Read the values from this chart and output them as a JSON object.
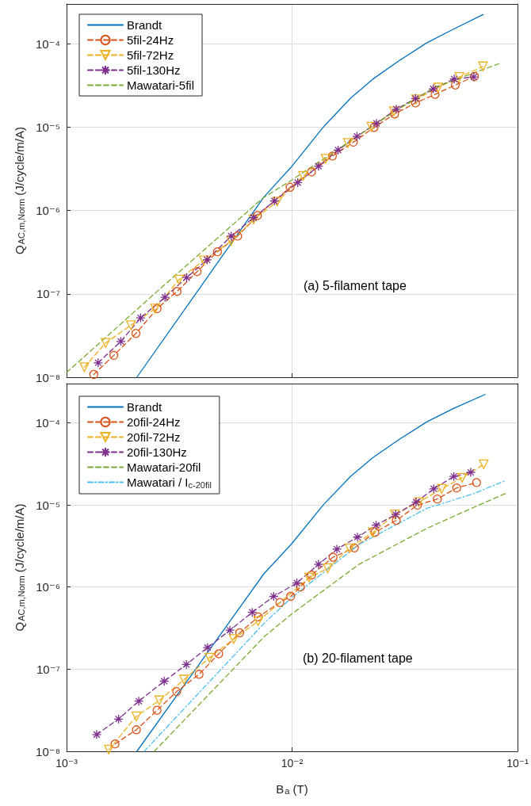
{
  "chart_data": [
    {
      "type": "line",
      "ylabel": "Q$_{AC,m,Norm}$ (J/cycle/m/A)",
      "annotations": [
        "(a) 5-filament tape"
      ],
      "log": "xy",
      "grid": true,
      "legend": "top left",
      "tick_labels": "y",
      "xlim": [
        0.001,
        0.1
      ],
      "xticks": [
        {
          "value": 0.001,
          "label": null
        },
        {
          "value": 0.01,
          "label": null
        },
        {
          "value": 0.1,
          "label": null
        }
      ],
      "ylim": [
        1e-08,
        0.0003
      ],
      "yticks": [
        {
          "value": 1e-08,
          "label": "10⁻⁸"
        },
        {
          "value": 1e-07,
          "label": "10⁻⁷"
        },
        {
          "value": 1e-06,
          "label": "10⁻⁶"
        },
        {
          "value": 1e-05,
          "label": "10⁻⁵"
        },
        {
          "value": 0.0001,
          "label": "10⁻⁴"
        }
      ],
      "series": [
        {
          "name": "Brandt",
          "color": "#0072bd",
          "marker": "none",
          "line_style": "solid",
          "x": [
            0.00205,
            0.0075,
            0.0099,
            0.0138,
            0.0182,
            0.0228,
            0.0302,
            0.0397,
            0.0516,
            0.0703
          ],
          "values": [
            1e-08,
            1.45e-06,
            3.3e-06,
            1.01e-05,
            2.23e-05,
            3.76e-05,
            6.4e-05,
            0.000103,
            0.000148,
            0.000224
          ]
        },
        {
          "name": "5fil-24Hz",
          "color": "#d95319",
          "marker": "circle",
          "line_style": "dashed",
          "x": [
            0.00132,
            0.00162,
            0.00203,
            0.00252,
            0.00309,
            0.00379,
            0.00467,
            0.00574,
            0.00703,
            0.0098,
            0.0122,
            0.0151,
            0.0187,
            0.0231,
            0.0285,
            0.0353,
            0.0431,
            0.053,
            0.0644
          ],
          "values": [
            1.08e-08,
            1.83e-08,
            3.35e-08,
            6.65e-08,
            1.07e-07,
            1.85e-07,
            3.2e-07,
            4.93e-07,
            8.7e-07,
            1.9e-06,
            2.9e-06,
            4.5e-06,
            6.6e-06,
            9.9e-06,
            1.44e-05,
            1.95e-05,
            2.47e-05,
            3.2e-05,
            4.05e-05
          ]
        },
        {
          "name": "5fil-72Hz",
          "color": "#edb120",
          "marker": "triangle",
          "line_style": "dashed",
          "x": [
            0.0012,
            0.00149,
            0.00193,
            0.00247,
            0.00315,
            0.00406,
            0.00537,
            0.00675,
            0.0086,
            0.0112,
            0.0141,
            0.0177,
            0.0225,
            0.0283,
            0.0355,
            0.0445,
            0.0552,
            0.0703
          ],
          "values": [
            1.32e-08,
            2.58e-08,
            4.2e-08,
            6.65e-08,
            1.48e-07,
            2.52e-07,
            4.3e-07,
            7.8e-07,
            1.28e-06,
            2.6e-06,
            4.17e-06,
            6.45e-06,
            1.01e-05,
            1.55e-05,
            2.15e-05,
            2.98e-05,
            3.99e-05,
            5.35e-05
          ]
        },
        {
          "name": "5fil-130Hz",
          "color": "#7e2f8e",
          "marker": "cross",
          "line_style": "dashed",
          "x": [
            0.00138,
            0.00174,
            0.00213,
            0.00273,
            0.00341,
            0.0042,
            0.00537,
            0.00675,
            0.00835,
            0.0106,
            0.0131,
            0.016,
            0.0194,
            0.0237,
            0.029,
            0.0353,
            0.0423,
            0.0524,
            0.064
          ],
          "values": [
            1.49e-08,
            2.69e-08,
            5.15e-08,
            9.1e-08,
            1.57e-07,
            2.56e-07,
            4.93e-07,
            8.2e-07,
            1.3e-06,
            2.16e-06,
            3.4e-06,
            5.3e-06,
            7.75e-06,
            1.11e-05,
            1.64e-05,
            2.2e-05,
            2.88e-05,
            3.77e-05,
            4e-05
          ]
        },
        {
          "name": "Mawatari-5fil",
          "color": "#77ac30",
          "marker": "none",
          "line_style": "dashed",
          "x": [
            0.001,
            0.00254,
            0.0074,
            0.01,
            0.0286,
            0.0427,
            0.0836
          ],
          "values": [
            1.14e-08,
            1.09e-07,
            1.4e-06,
            2.33e-06,
            1.55e-05,
            2.99e-05,
            5.83e-05
          ]
        }
      ]
    },
    {
      "type": "line",
      "xlabel": "B$_{a}$ (T)",
      "ylabel": "Q$_{AC,m,Norm}$ (J/cycle/m/A)",
      "annotations": [
        "(b) 20-filament tape"
      ],
      "log": "xy",
      "grid": true,
      "legend": "top left",
      "xlim": [
        0.001,
        0.1
      ],
      "xticks": [
        {
          "value": 0.001,
          "label": "10⁻³"
        },
        {
          "value": 0.01,
          "label": "10⁻²"
        },
        {
          "value": 0.1,
          "label": "10⁻¹"
        }
      ],
      "ylim": [
        1e-08,
        0.0003
      ],
      "yticks": [
        {
          "value": 1e-08,
          "label": "10⁻⁸"
        },
        {
          "value": 1e-07,
          "label": "10⁻⁷"
        },
        {
          "value": 1e-06,
          "label": "10⁻⁶"
        },
        {
          "value": 1e-05,
          "label": "10⁻⁵"
        },
        {
          "value": 0.0001,
          "label": "10⁻⁴"
        }
      ],
      "series": [
        {
          "name": "Brandt",
          "color": "#0072bd",
          "marker": "none",
          "line_style": "solid",
          "x": [
            0.00205,
            0.0075,
            0.0099,
            0.0138,
            0.0182,
            0.0228,
            0.0302,
            0.0397,
            0.0516,
            0.0718
          ],
          "values": [
            1e-08,
            1.45e-06,
            3.3e-06,
            1.01e-05,
            2.23e-05,
            3.76e-05,
            6.4e-05,
            0.000103,
            0.000148,
            0.000221
          ]
        },
        {
          "name": "20fil-24Hz",
          "color": "#d95319",
          "marker": "circle",
          "line_style": "dashed",
          "x": [
            0.00164,
            0.00204,
            0.00252,
            0.00308,
            0.00387,
            0.00473,
            0.00586,
            0.00708,
            0.00883,
            0.00986,
            0.0109,
            0.0122,
            0.0152,
            0.0189,
            0.0233,
            0.029,
            0.036,
            0.0441,
            0.0537,
            0.0658
          ],
          "values": [
            1.23e-08,
            1.83e-08,
            3.16e-08,
            5.34e-08,
            8.67e-08,
            1.54e-07,
            2.77e-07,
            4.33e-07,
            6.48e-07,
            7.7e-07,
            1e-06,
            1.4e-06,
            2.31e-06,
            3e-06,
            4.63e-06,
            6.49e-06,
            9.93e-06,
            1.18e-05,
            1.61e-05,
            1.87e-05
          ]
        },
        {
          "name": "20fil-72Hz",
          "color": "#edb120",
          "marker": "triangle",
          "line_style": "dashed",
          "x": [
            0.00154,
            0.00204,
            0.00258,
            0.00332,
            0.0043,
            0.00551,
            0.00708,
            0.0119,
            0.0144,
            0.018,
            0.0228,
            0.0286,
            0.0365,
            0.0461,
            0.0568,
            0.0708
          ],
          "values": [
            1.05e-08,
            2.66e-08,
            4.17e-08,
            7.47e-08,
            1.38e-07,
            2.33e-07,
            3.84e-07,
            1.3e-06,
            1.69e-06,
            2.96e-06,
            4.63e-06,
            7.64e-06,
            1.08e-05,
            1.57e-05,
            2.14e-05,
            3.12e-05
          ]
        },
        {
          "name": "20fil-130Hz",
          "color": "#7e2f8e",
          "marker": "cross",
          "line_style": "dashed",
          "x": [
            0.00136,
            0.0017,
            0.00209,
            0.00271,
            0.0034,
            0.00422,
            0.0053,
            0.00666,
            0.00829,
            0.0105,
            0.0131,
            0.0158,
            0.0195,
            0.0236,
            0.0288,
            0.0355,
            0.0425,
            0.0522,
            0.062
          ],
          "values": [
            1.6e-08,
            2.47e-08,
            4.08e-08,
            7.14e-08,
            1.14e-07,
            1.83e-07,
            2.98e-07,
            4.92e-07,
            7.7e-07,
            1.12e-06,
            1.89e-06,
            2.89e-06,
            4.05e-06,
            5.66e-06,
            7.64e-06,
            1.08e-05,
            1.57e-05,
            2.22e-05,
            2.49e-05
          ]
        },
        {
          "name": "Mawatari-20fil",
          "color": "#77ac30",
          "marker": "none",
          "line_style": "dashed",
          "x": [
            0.00245,
            0.00754,
            0.01,
            0.0198,
            0.0396,
            0.0643,
            0.0891
          ],
          "values": [
            1e-08,
            2.5e-07,
            4.74e-07,
            1.89e-06,
            5.18e-06,
            9.4e-06,
            1.39e-05
          ]
        },
        {
          "name": "Mawatari / I$_{c-20fil}$",
          "color": "#4dbeee",
          "marker": "none",
          "line_style": "dashdot",
          "x": [
            0.00221,
            0.00754,
            0.01,
            0.0198,
            0.0396,
            0.0638,
            0.0891
          ],
          "values": [
            1e-08,
            3.65e-07,
            7.5e-07,
            3.3e-06,
            9.08e-06,
            1.37e-05,
            1.99e-05
          ]
        }
      ]
    }
  ]
}
